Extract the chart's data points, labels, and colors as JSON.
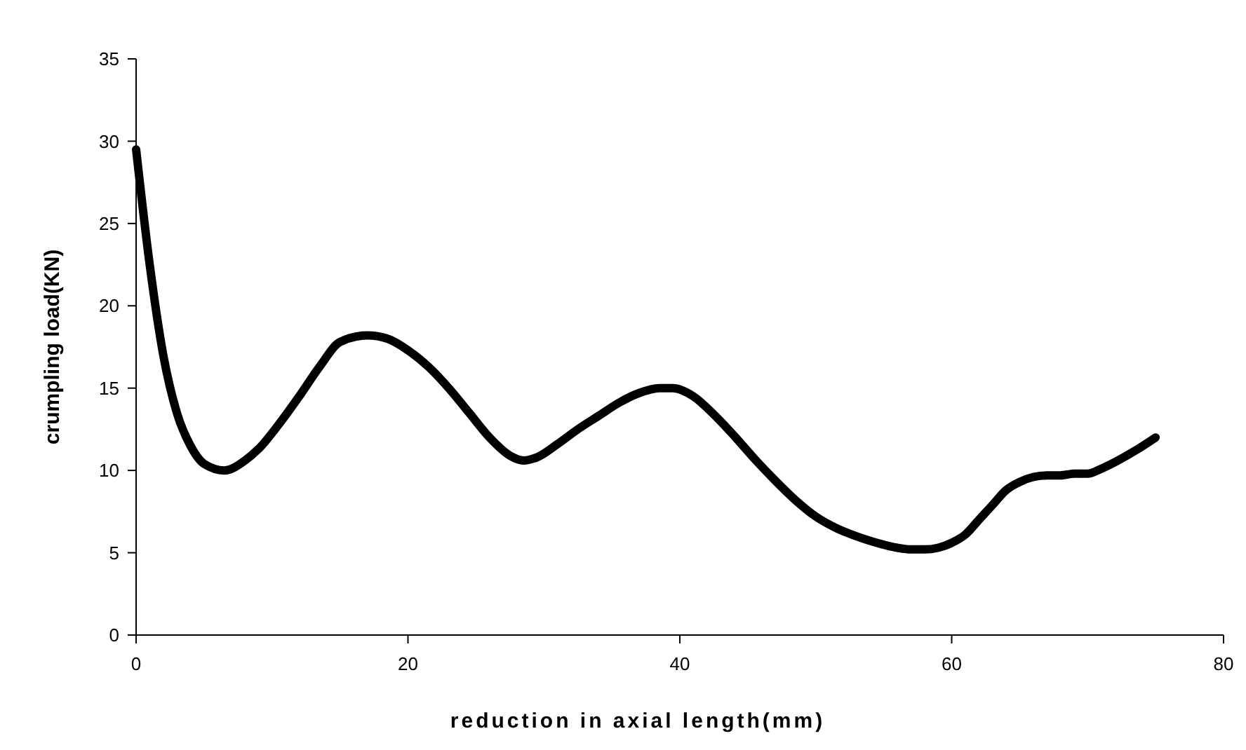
{
  "chart_data": {
    "type": "line",
    "xlabel": "reduction in axial length(mm)",
    "ylabel": "crumpling load(KN)",
    "xlim": [
      0,
      80
    ],
    "xticks": [
      0,
      20,
      40,
      60,
      80
    ],
    "ylim": [
      0,
      35
    ],
    "yticks": [
      0,
      5,
      10,
      15,
      20,
      25,
      30,
      35
    ],
    "marker": "none",
    "line_style": "solid",
    "series": [
      {
        "color": "#000000",
        "x": [
          0,
          1,
          2,
          3,
          4,
          5,
          6.5,
          8,
          9,
          10.5,
          12,
          13.5,
          15,
          17,
          18.5,
          20,
          21.5,
          23,
          24.5,
          26,
          27.5,
          28.5,
          29.5,
          31,
          32.5,
          34,
          35.5,
          37,
          38.5,
          39.5,
          41,
          42.5,
          44,
          45.5,
          47,
          48.5,
          50,
          51.5,
          53,
          54.5,
          56,
          57,
          58,
          59,
          60,
          61,
          62,
          63,
          64,
          65,
          66,
          67,
          68,
          69,
          70,
          71,
          72,
          73.5,
          75
        ],
        "values": [
          29.5,
          22.5,
          17,
          13.5,
          11.5,
          10.4,
          10,
          10.6,
          11.3,
          12.8,
          14.5,
          16.3,
          17.8,
          18.2,
          18,
          17.3,
          16.3,
          15,
          13.5,
          12,
          10.9,
          10.6,
          10.8,
          11.6,
          12.5,
          13.3,
          14.1,
          14.7,
          15,
          15,
          14.5,
          13.4,
          12.1,
          10.7,
          9.4,
          8.2,
          7.2,
          6.5,
          6,
          5.6,
          5.3,
          5.2,
          5.2,
          5.3,
          5.6,
          6.1,
          7,
          7.9,
          8.8,
          9.3,
          9.6,
          9.7,
          9.7,
          9.8,
          9.8,
          10.1,
          10.5,
          11.2,
          12
        ]
      }
    ]
  }
}
